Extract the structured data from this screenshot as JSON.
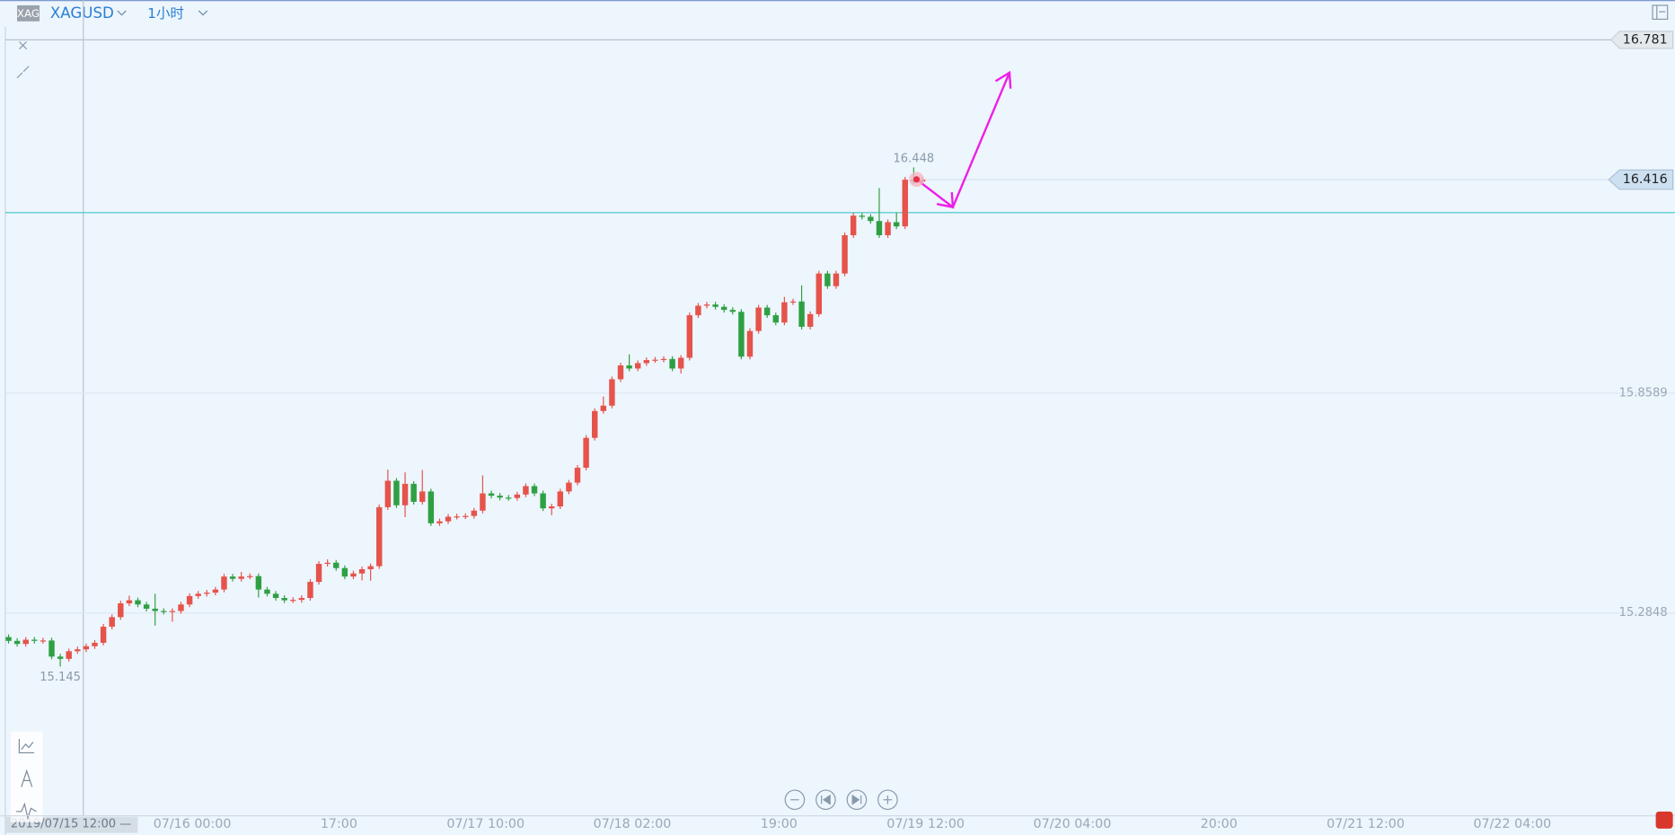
{
  "header": {
    "icon": "XAG",
    "symbol": "XAGUSD",
    "interval": "1小时"
  },
  "chart_data": {
    "type": "candlestick",
    "up_color": "#e5534b",
    "down_color": "#2ea043",
    "open": [
      15.222,
      15.212,
      15.204,
      15.215,
      15.212,
      15.213,
      15.171,
      15.165,
      15.185,
      15.19,
      15.198,
      15.207,
      15.249,
      15.274,
      15.31,
      15.318,
      15.307,
      15.296,
      15.29,
      15.288,
      15.29,
      15.307,
      15.329,
      15.335,
      15.338,
      15.346,
      15.38,
      15.374,
      15.38,
      15.381,
      15.346,
      15.335,
      15.324,
      15.318,
      15.319,
      15.324,
      15.366,
      15.413,
      15.416,
      15.402,
      15.38,
      15.388,
      15.399,
      15.407,
      15.561,
      15.63,
      15.566,
      15.622,
      15.575,
      15.602,
      15.519,
      15.524,
      15.536,
      15.537,
      15.538,
      15.552,
      15.597,
      15.591,
      15.586,
      15.585,
      15.594,
      15.616,
      15.597,
      15.558,
      15.563,
      15.602,
      15.625,
      15.664,
      15.742,
      15.812,
      15.826,
      15.895,
      15.931,
      15.923,
      15.937,
      15.945,
      15.946,
      15.948,
      15.923,
      15.951,
      16.062,
      16.087,
      16.09,
      16.084,
      16.076,
      16.071,
      15.954,
      16.021,
      16.082,
      16.062,
      16.043,
      16.096,
      16.098,
      16.032,
      16.065,
      16.171,
      16.138,
      16.171,
      16.271,
      16.322,
      16.319,
      16.308,
      16.271,
      16.305,
      16.294,
      16.416,
      16.411
    ],
    "high": [
      15.229,
      15.219,
      15.222,
      15.222,
      15.22,
      15.22,
      15.178,
      15.192,
      15.197,
      15.205,
      15.214,
      15.256,
      15.281,
      15.317,
      15.33,
      15.325,
      15.314,
      15.335,
      15.297,
      15.297,
      15.314,
      15.336,
      15.342,
      15.345,
      15.353,
      15.387,
      15.387,
      15.392,
      15.388,
      15.388,
      15.353,
      15.342,
      15.331,
      15.326,
      15.331,
      15.373,
      15.42,
      15.425,
      15.423,
      15.409,
      15.395,
      15.406,
      15.414,
      15.568,
      15.659,
      15.637,
      15.652,
      15.629,
      15.658,
      15.609,
      15.531,
      15.543,
      15.544,
      15.545,
      15.559,
      15.644,
      15.604,
      15.598,
      15.593,
      15.601,
      15.623,
      15.623,
      15.604,
      15.57,
      15.609,
      15.632,
      15.671,
      15.749,
      15.819,
      15.85,
      15.902,
      15.938,
      15.96,
      15.944,
      15.952,
      15.953,
      15.955,
      15.955,
      15.958,
      16.069,
      16.094,
      16.097,
      16.097,
      16.091,
      16.083,
      16.078,
      16.028,
      16.089,
      16.089,
      16.069,
      16.11,
      16.105,
      16.14,
      16.072,
      16.178,
      16.178,
      16.178,
      16.278,
      16.329,
      16.329,
      16.326,
      16.394,
      16.312,
      16.33,
      16.423,
      16.448,
      16.423
    ],
    "low": [
      15.205,
      15.197,
      15.197,
      15.205,
      15.205,
      15.164,
      15.145,
      15.158,
      15.178,
      15.183,
      15.191,
      15.2,
      15.242,
      15.267,
      15.303,
      15.3,
      15.289,
      15.252,
      15.281,
      15.262,
      15.283,
      15.3,
      15.322,
      15.328,
      15.331,
      15.339,
      15.367,
      15.367,
      15.373,
      15.325,
      15.328,
      15.317,
      15.311,
      15.311,
      15.312,
      15.317,
      15.359,
      15.406,
      15.395,
      15.373,
      15.373,
      15.37,
      15.369,
      15.4,
      15.554,
      15.559,
      15.535,
      15.568,
      15.568,
      15.512,
      15.512,
      15.517,
      15.529,
      15.53,
      15.531,
      15.545,
      15.584,
      15.579,
      15.578,
      15.578,
      15.587,
      15.59,
      15.551,
      15.54,
      15.556,
      15.595,
      15.618,
      15.657,
      15.735,
      15.805,
      15.819,
      15.888,
      15.916,
      15.916,
      15.93,
      15.938,
      15.939,
      15.916,
      15.91,
      15.944,
      16.055,
      16.08,
      16.077,
      16.069,
      16.064,
      15.947,
      15.947,
      16.014,
      16.055,
      16.036,
      16.036,
      16.089,
      16.025,
      16.025,
      16.058,
      16.131,
      16.131,
      16.164,
      16.264,
      16.312,
      16.301,
      16.264,
      16.264,
      16.287,
      16.287,
      16.404,
      16.404
    ],
    "close": [
      15.212,
      15.204,
      15.215,
      15.212,
      15.213,
      15.171,
      15.165,
      15.185,
      15.19,
      15.198,
      15.207,
      15.249,
      15.274,
      15.31,
      15.318,
      15.307,
      15.296,
      15.29,
      15.288,
      15.29,
      15.307,
      15.329,
      15.335,
      15.338,
      15.346,
      15.38,
      15.374,
      15.38,
      15.381,
      15.346,
      15.335,
      15.324,
      15.318,
      15.319,
      15.324,
      15.366,
      15.413,
      15.416,
      15.402,
      15.38,
      15.388,
      15.399,
      15.407,
      15.561,
      15.63,
      15.566,
      15.622,
      15.575,
      15.602,
      15.519,
      15.524,
      15.536,
      15.537,
      15.538,
      15.552,
      15.597,
      15.591,
      15.586,
      15.585,
      15.594,
      15.616,
      15.597,
      15.558,
      15.563,
      15.602,
      15.625,
      15.664,
      15.742,
      15.812,
      15.826,
      15.895,
      15.931,
      15.923,
      15.937,
      15.945,
      15.946,
      15.948,
      15.923,
      15.951,
      16.062,
      16.087,
      16.09,
      16.084,
      16.076,
      16.071,
      15.954,
      16.021,
      16.082,
      16.062,
      16.043,
      16.096,
      16.098,
      16.032,
      16.065,
      16.171,
      16.138,
      16.171,
      16.271,
      16.322,
      16.319,
      16.308,
      16.271,
      16.305,
      16.294,
      16.416,
      16.411,
      16.416
    ],
    "ylim": [
      14.761,
      16.885
    ],
    "yticks": [
      15.2848,
      15.8589
    ],
    "price_line": 16.781,
    "last_price": 16.416,
    "drawn_line": 16.33,
    "high_label_index": 105,
    "low_label_index": 6,
    "crosshair_label": "2019/07/15 12:00 —",
    "x_labels": [
      "07/16 00:00",
      "17:00",
      "07/17 10:00",
      "07/18 02:00",
      "19:00",
      "07/19 12:00",
      "07/20 04:00",
      "20:00",
      "07/21 12:00",
      "07/22 04:00"
    ],
    "grid": true
  }
}
